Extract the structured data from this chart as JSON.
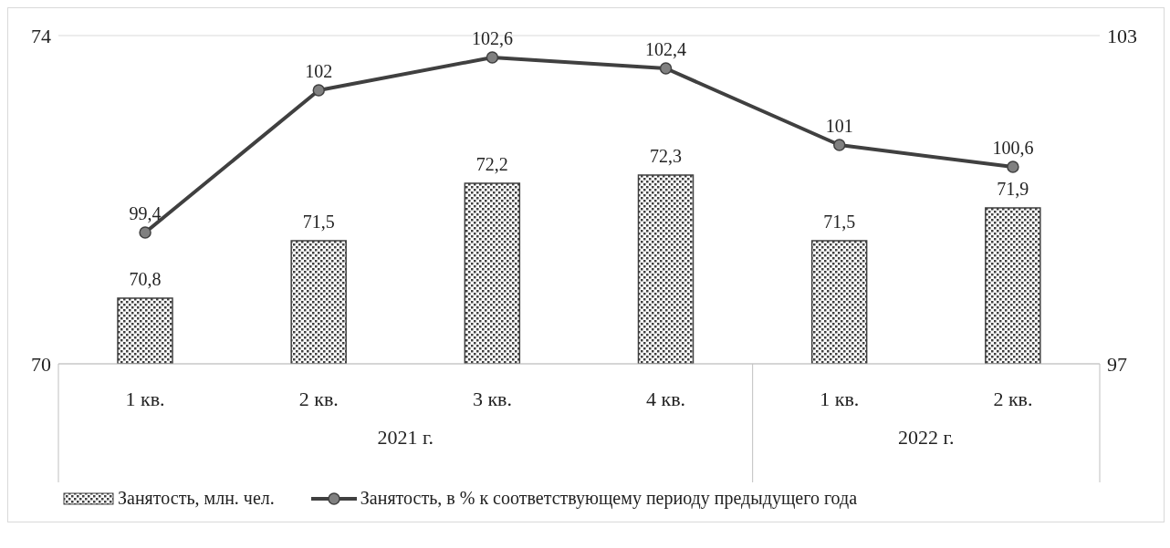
{
  "chart_data": {
    "type": "bar",
    "categories": [
      "1 кв.",
      "2 кв.",
      "3 кв.",
      "4 кв.",
      "1 кв.",
      "2 кв."
    ],
    "series": [
      {
        "name": "Занятость, млн. чел.",
        "color": "#404040",
        "values": [
          70.8,
          71.5,
          72.2,
          72.3,
          71.5,
          71.9
        ],
        "value_labels": [
          "70,8",
          "71,5",
          "72,2",
          "72,3",
          "71,5",
          "71,9"
        ]
      },
      {
        "name": "Занятость, в % к соответствующему периоду предыдущего года",
        "type": "line",
        "axis": "y2",
        "color": "#404040",
        "values": [
          99.4,
          102,
          102.6,
          102.4,
          101,
          100.6
        ],
        "value_labels": [
          "99,4",
          "102",
          "102,6",
          "102,4",
          "101",
          "100,6"
        ]
      }
    ],
    "annotations": [
      "2021 г.",
      "2022 г."
    ],
    "ylim": [
      70,
      74
    ],
    "yticks": [
      70,
      74
    ],
    "y2lim": [
      97,
      103
    ],
    "y2ticks": [
      97,
      103
    ],
    "grid": "y",
    "legend": "bottom",
    "marker": "circle",
    "line_style": "solid"
  }
}
